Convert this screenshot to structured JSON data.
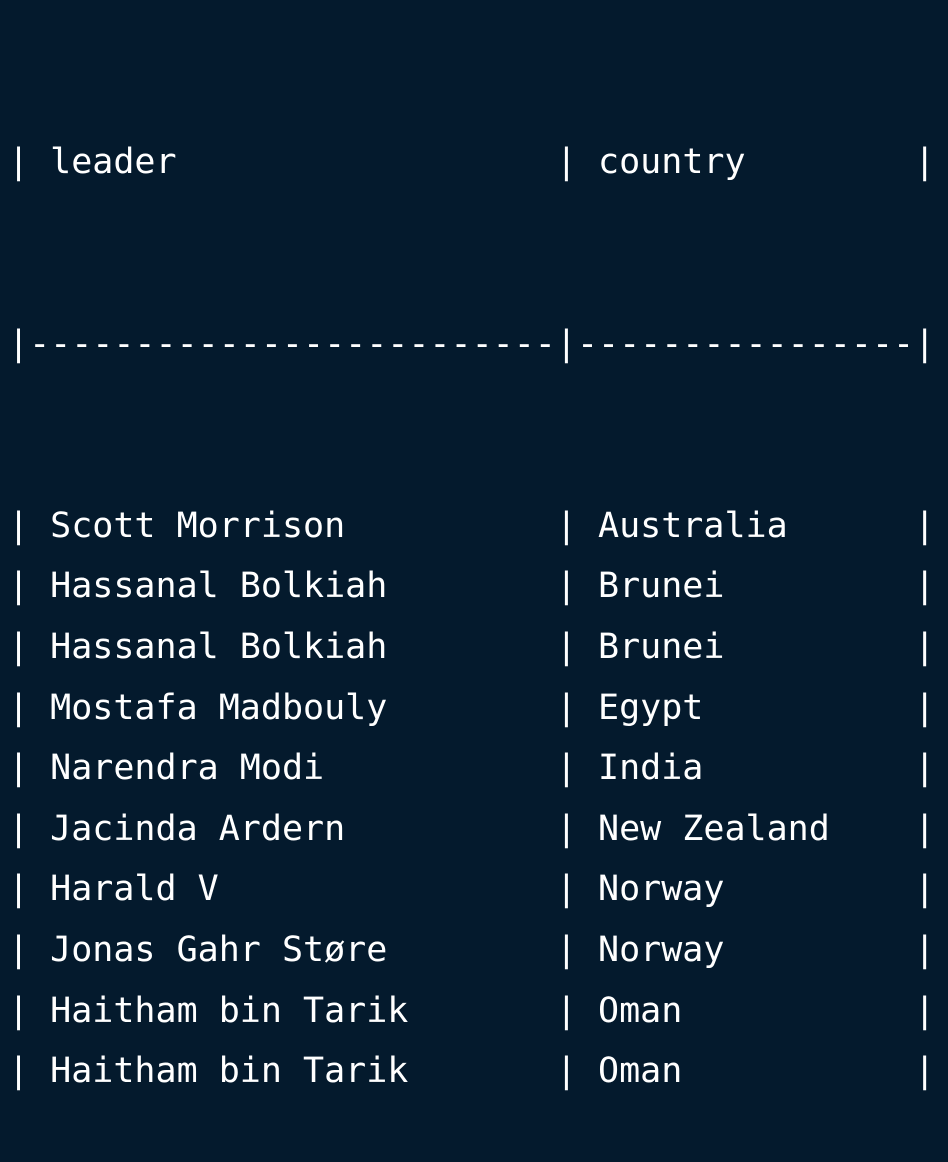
{
  "table": {
    "column_width_leader": 25,
    "column_width_country": 16,
    "headers": [
      "leader",
      "country"
    ],
    "rows": [
      [
        "Scott Morrison",
        "Australia"
      ],
      [
        "Hassanal Bolkiah",
        "Brunei"
      ],
      [
        "Hassanal Bolkiah",
        "Brunei"
      ],
      [
        "Mostafa Madbouly",
        "Egypt"
      ],
      [
        "Narendra Modi",
        "India"
      ],
      [
        "Jacinda Ardern",
        "New Zealand"
      ],
      [
        "Harald V",
        "Norway"
      ],
      [
        "Jonas Gahr Støre",
        "Norway"
      ],
      [
        "Haitham bin Tarik",
        "Oman"
      ],
      [
        "Haitham bin Tarik",
        "Oman"
      ]
    ]
  },
  "colors": {
    "background": "#041a2d",
    "text": "#ffffff"
  }
}
